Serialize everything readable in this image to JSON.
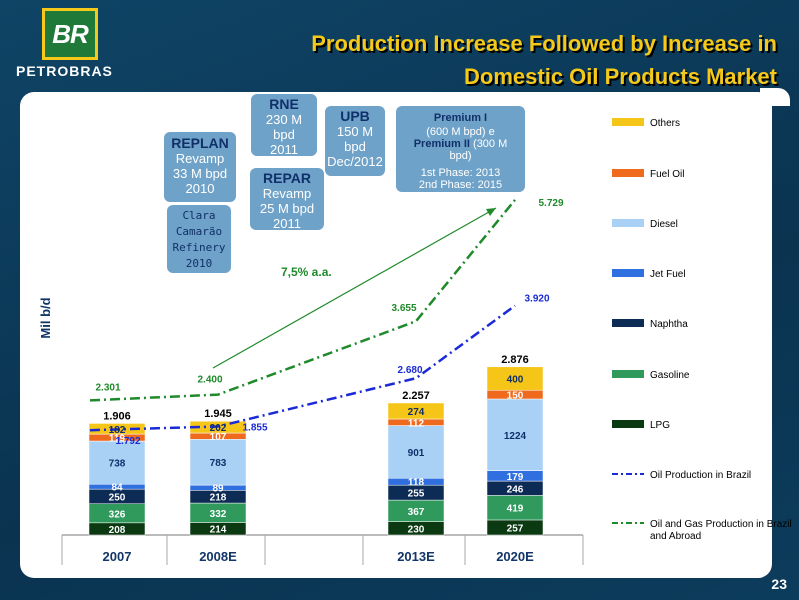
{
  "header": {
    "logo_text": "BR",
    "company": "PETROBRAS",
    "title_line1": "Production Increase Followed by Increase in",
    "title_line2": "Domestic Oil Products Market",
    "page_number": "23"
  },
  "annotations": {
    "rne": {
      "title": "RNE",
      "body1": "230 M",
      "body2": "bpd",
      "body3": "2011"
    },
    "upb": {
      "title": "UPB",
      "body1": "150 M",
      "body2": "bpd",
      "body3": "Dec/2012"
    },
    "premium": {
      "title1": "Premium I",
      "body1": "(600 M bpd)  e",
      "title2": "Premium II",
      "body2": " (300 M",
      "body3": "bpd)",
      "phase1": "1st Phase: 2013",
      "phase2": "2nd Phase: 2015"
    },
    "replan": {
      "title": "REPLAN",
      "body1": "Revamp",
      "body2": "33 M bpd",
      "body3": "2010"
    },
    "repar": {
      "title": "REPAR",
      "body1": "Revamp",
      "body2": "25 M bpd",
      "body3": "2011"
    },
    "clara": {
      "line1": "Clara",
      "line2": "Camarão",
      "line3": "Refinery",
      "line4": "2010"
    }
  },
  "chart_data": {
    "type": "bar",
    "ylabel": "Mil b/d",
    "categories": [
      "2007",
      "2008E",
      "2013E",
      "2020E"
    ],
    "series": [
      {
        "name": "LPG",
        "color": "#0b3a12",
        "values": [
          208,
          214,
          230,
          257
        ]
      },
      {
        "name": "Gasoline",
        "color": "#2f9a5c",
        "values": [
          326,
          332,
          367,
          419
        ]
      },
      {
        "name": "Naphtha",
        "color": "#0c2b55",
        "values": [
          250,
          218,
          255,
          246
        ]
      },
      {
        "name": "Jet Fuel",
        "color": "#2f6fe0",
        "values": [
          84,
          89,
          118,
          179
        ]
      },
      {
        "name": "Diesel",
        "color": "#a9d0f5",
        "values": [
          738,
          783,
          901,
          1224
        ]
      },
      {
        "name": "Fuel Oil",
        "color": "#f06a1d",
        "values": [
          119,
          107,
          112,
          150
        ]
      },
      {
        "name": "Others",
        "color": "#f5c518",
        "values": [
          182,
          202,
          274,
          400
        ]
      }
    ],
    "totals": [
      "1.906",
      "1.945",
      "2.257",
      "2.876"
    ],
    "lines": [
      {
        "name": "Oil Production in Brazil",
        "color": "#1a2ad6",
        "values": [
          1792,
          1855,
          2680,
          3920
        ],
        "labels": [
          "1.792",
          "1.855",
          "2.680",
          "3.920"
        ]
      },
      {
        "name": "Oil and Gas Production in Brazil and Abroad",
        "color": "#1f8a2a",
        "values": [
          2301,
          2400,
          3655,
          5729
        ],
        "labels": [
          "2.301",
          "2.400",
          "3.655",
          "5.729"
        ]
      }
    ],
    "growth_annotation": "7,5% a.a.",
    "legend_position": "right"
  }
}
